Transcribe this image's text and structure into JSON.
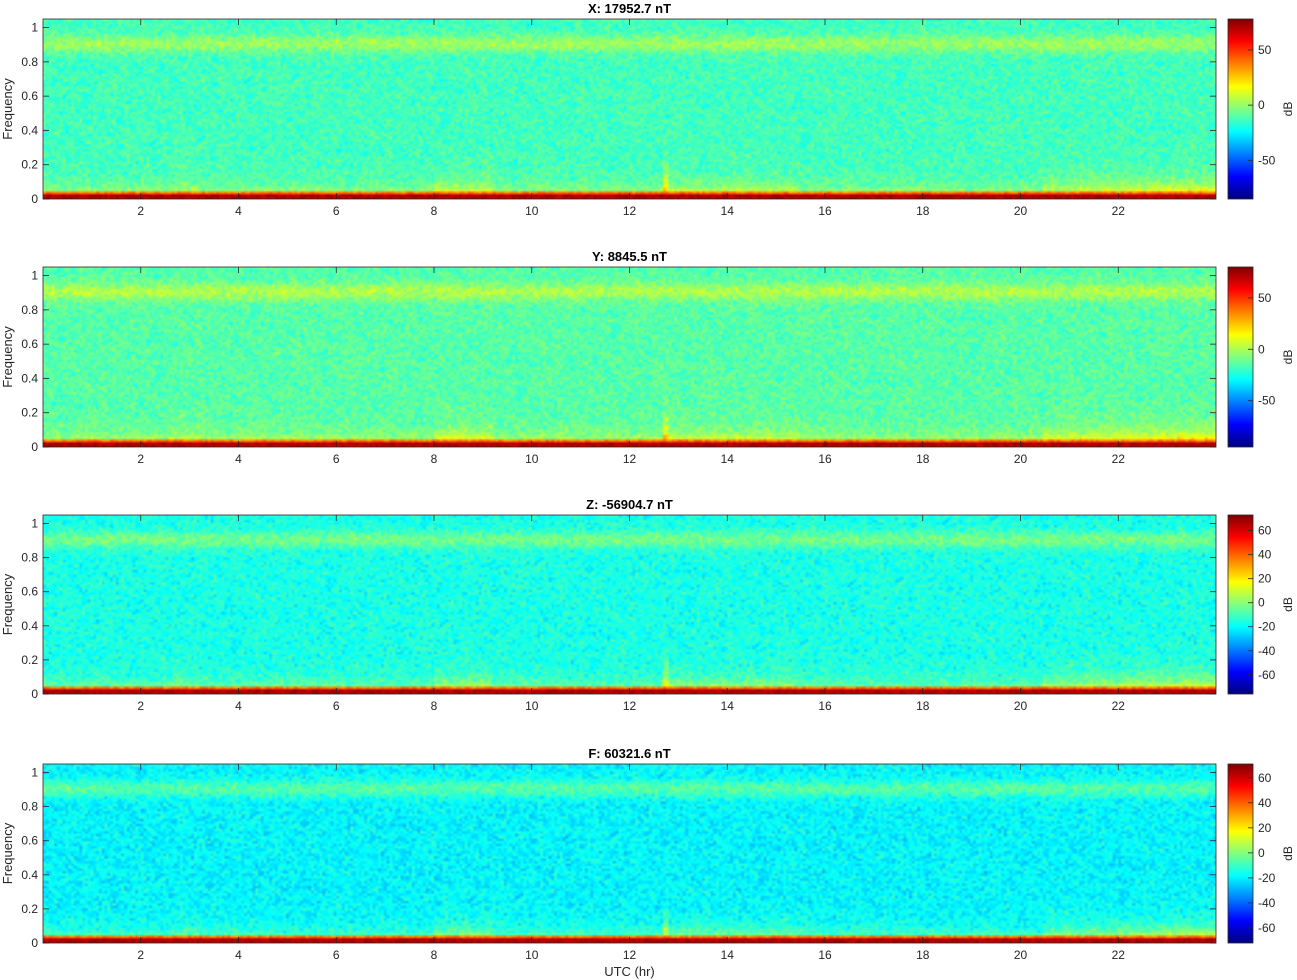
{
  "chart_data": [
    {
      "type": "heatmap",
      "title": "X: 17952.7 nT",
      "ylabel": "Frequency",
      "xlabel": "",
      "xlim": [
        0,
        24
      ],
      "ylim": [
        0,
        1.05
      ],
      "xticks": [
        2,
        4,
        6,
        8,
        10,
        12,
        14,
        16,
        18,
        20,
        22
      ],
      "xtick_labels": [
        "2",
        "4",
        "6",
        "8",
        "10",
        "12",
        "14",
        "16",
        "18",
        "20",
        "22"
      ],
      "yticks": [
        0,
        0.2,
        0.4,
        0.6,
        0.8,
        1
      ],
      "ytick_labels": [
        "0",
        "0.2",
        "0.4",
        "0.6",
        "0.8",
        "1"
      ],
      "colorbar": {
        "label": "dB",
        "range": [
          -85,
          78
        ],
        "ticks": [
          -50,
          0,
          50
        ],
        "tick_labels": [
          "-50",
          "0",
          "50"
        ]
      },
      "colormap": "jet"
    },
    {
      "type": "heatmap",
      "title": "Y: 8845.5 nT",
      "ylabel": "Frequency",
      "xlabel": "",
      "xlim": [
        0,
        24
      ],
      "ylim": [
        0,
        1.05
      ],
      "xticks": [
        2,
        4,
        6,
        8,
        10,
        12,
        14,
        16,
        18,
        20,
        22
      ],
      "xtick_labels": [
        "2",
        "4",
        "6",
        "8",
        "10",
        "12",
        "14",
        "16",
        "18",
        "20",
        "22"
      ],
      "yticks": [
        0,
        0.2,
        0.4,
        0.6,
        0.8,
        1
      ],
      "ytick_labels": [
        "0",
        "0.2",
        "0.4",
        "0.6",
        "0.8",
        "1"
      ],
      "colorbar": {
        "label": "dB",
        "range": [
          -95,
          80
        ],
        "ticks": [
          -50,
          0,
          50
        ],
        "tick_labels": [
          "-50",
          "0",
          "50"
        ]
      },
      "colormap": "jet"
    },
    {
      "type": "heatmap",
      "title": "Z: -56904.7 nT",
      "ylabel": "Frequency",
      "xlabel": "",
      "xlim": [
        0,
        24
      ],
      "ylim": [
        0,
        1.05
      ],
      "xticks": [
        2,
        4,
        6,
        8,
        10,
        12,
        14,
        16,
        18,
        20,
        22
      ],
      "xtick_labels": [
        "2",
        "4",
        "6",
        "8",
        "10",
        "12",
        "14",
        "16",
        "18",
        "20",
        "22"
      ],
      "yticks": [
        0,
        0.2,
        0.4,
        0.6,
        0.8,
        1
      ],
      "ytick_labels": [
        "0",
        "0.2",
        "0.4",
        "0.6",
        "0.8",
        "1"
      ],
      "colorbar": {
        "label": "dB",
        "range": [
          -76,
          73
        ],
        "ticks": [
          -60,
          -40,
          -20,
          0,
          20,
          40,
          60
        ],
        "tick_labels": [
          "-60",
          "-40",
          "-20",
          "0",
          "20",
          "40",
          "60"
        ]
      },
      "colormap": "jet"
    },
    {
      "type": "heatmap",
      "title": "F: 60321.6 nT",
      "ylabel": "Frequency",
      "xlabel": "UTC (hr)",
      "xlim": [
        0,
        24
      ],
      "ylim": [
        0,
        1.05
      ],
      "xticks": [
        2,
        4,
        6,
        8,
        10,
        12,
        14,
        16,
        18,
        20,
        22
      ],
      "xtick_labels": [
        "2",
        "4",
        "6",
        "8",
        "10",
        "12",
        "14",
        "16",
        "18",
        "20",
        "22"
      ],
      "yticks": [
        0,
        0.2,
        0.4,
        0.6,
        0.8,
        1
      ],
      "ytick_labels": [
        "0",
        "0.2",
        "0.4",
        "0.6",
        "0.8",
        "1"
      ],
      "colorbar": {
        "label": "dB",
        "range": [
          -72,
          71
        ],
        "ticks": [
          -60,
          -40,
          -20,
          0,
          20,
          40,
          60
        ],
        "tick_labels": [
          "-60",
          "-40",
          "-20",
          "0",
          "20",
          "40",
          "60"
        ]
      },
      "colormap": "jet"
    }
  ]
}
